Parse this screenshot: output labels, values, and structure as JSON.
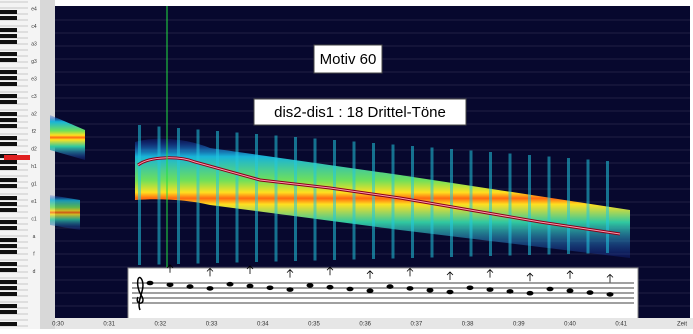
{
  "header": {
    "motif_label": "Motiv 60",
    "interval_label": "dis2-dis1 : 18 Drittel-Töne"
  },
  "keyboard_labels": [
    "e4",
    "c4",
    "a3",
    "g3",
    "e3",
    "c3",
    "a2",
    "f2",
    "d2",
    "h1",
    "g1",
    "e1",
    "c1",
    "a",
    "f",
    "d"
  ],
  "time_axis": {
    "labels": [
      "0:30",
      "0:31",
      "0:32",
      "0:33",
      "0:34",
      "0:35",
      "0:36",
      "0:37",
      "0:38",
      "0:39",
      "0:40",
      "0:41"
    ],
    "unit": "Zeit"
  }
}
